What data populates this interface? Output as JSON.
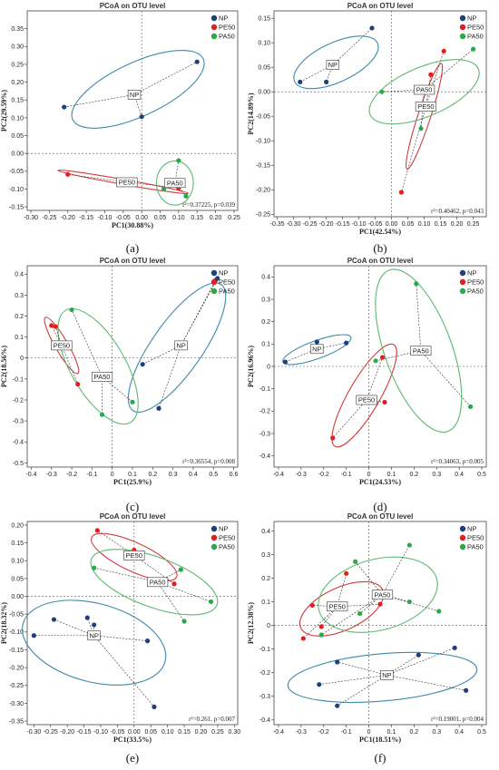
{
  "colors": {
    "NP": "#1f3f7a",
    "PE50": "#e02020",
    "PA50": "#2aa84a",
    "ellipse_NP": "#3d8aa8",
    "ellipse_PE50": "#d43a3a",
    "ellipse_PA50": "#5cb870"
  },
  "legend": [
    "NP",
    "PE50",
    "PA50"
  ],
  "chart_data": [
    {
      "type": "scatter",
      "letter": "(a)",
      "title": "PCoA on OTU level",
      "xlabel": "PC1(30.88%)",
      "ylabel": "PC2(29.59%)",
      "xlim": [
        -0.31,
        0.26
      ],
      "ylim": [
        -0.16,
        0.4
      ],
      "xticks": [
        -0.3,
        -0.25,
        -0.2,
        -0.15,
        -0.1,
        -0.05,
        0,
        0.05,
        0.1,
        0.15,
        0.2,
        0.25
      ],
      "xtick_labels": [
        "-0.30",
        "-0.25",
        "-0.20",
        "-0.15",
        "-0.10",
        "-0.05",
        "0.00",
        "0.05",
        "0.10",
        "0.15",
        "0.20",
        "0.25"
      ],
      "yticks": [
        -0.15,
        -0.1,
        -0.05,
        0,
        0.05,
        0.1,
        0.15,
        0.2,
        0.25,
        0.3,
        0.35
      ],
      "ytick_labels": [
        "-0.15",
        "-0.10",
        "-0.05",
        "0.00",
        "0.05",
        "0.10",
        "0.15",
        "0.20",
        "0.25",
        "0.30",
        "0.35"
      ],
      "stat": "r²=0.37225, p=0.039",
      "series": [
        {
          "name": "NP",
          "points": [
            [
              -0.21,
              0.13
            ],
            [
              0.0,
              0.103
            ],
            [
              0.15,
              0.257
            ]
          ],
          "centroid": [
            -0.02,
            0.165
          ],
          "ellipse": {
            "cx": -0.01,
            "cy": 0.18,
            "rx": 0.195,
            "ry": 0.075,
            "angle": 25
          }
        },
        {
          "name": "PE50",
          "points": [
            [
              -0.2,
              -0.059
            ],
            [
              -0.02,
              -0.087
            ],
            [
              0.1,
              -0.097
            ]
          ],
          "centroid": [
            -0.04,
            -0.081
          ],
          "ellipse": {
            "cx": -0.05,
            "cy": -0.08,
            "rx": 0.18,
            "ry": 0.007,
            "angle": -10
          }
        },
        {
          "name": "PA50",
          "points": [
            [
              0.1,
              -0.02
            ],
            [
              0.12,
              -0.12
            ],
            [
              0.06,
              -0.1
            ]
          ],
          "centroid": [
            0.09,
            -0.083
          ],
          "ellipse": {
            "cx": 0.09,
            "cy": -0.083,
            "rx": 0.05,
            "ry": 0.062,
            "angle": 0
          }
        }
      ]
    },
    {
      "type": "scatter",
      "letter": "(b)",
      "title": "PCoA on OTU level",
      "xlabel": "PC1(42.54%)",
      "ylabel": "PC2(14.89%)",
      "xlim": [
        -0.36,
        0.29
      ],
      "ylim": [
        -0.255,
        0.165
      ],
      "xticks": [
        -0.35,
        -0.3,
        -0.25,
        -0.2,
        -0.15,
        -0.1,
        -0.05,
        0,
        0.05,
        0.1,
        0.15,
        0.2,
        0.25
      ],
      "xtick_labels": [
        "-0.35",
        "-0.30",
        "-0.25",
        "-0.20",
        "-0.15",
        "-0.10",
        "-0.05",
        "0.00",
        "0.05",
        "0.10",
        "0.15",
        "0.20",
        "0.25"
      ],
      "yticks": [
        -0.25,
        -0.2,
        -0.15,
        -0.1,
        -0.05,
        0,
        0.05,
        0.1,
        0.15
      ],
      "ytick_labels": [
        "-0.25",
        "-0.20",
        "-0.15",
        "-0.10",
        "-0.05",
        "0.00",
        "0.05",
        "0.10",
        "0.15"
      ],
      "stat": "r²=0.40462, p=0.043",
      "series": [
        {
          "name": "NP",
          "points": [
            [
              -0.28,
              0.02
            ],
            [
              -0.2,
              0.02
            ],
            [
              -0.06,
              0.13
            ]
          ],
          "centroid": [
            -0.18,
            0.055
          ],
          "ellipse": {
            "cx": -0.17,
            "cy": 0.06,
            "rx": 0.14,
            "ry": 0.04,
            "angle": 25
          }
        },
        {
          "name": "PE50",
          "points": [
            [
              0.03,
              -0.205
            ],
            [
              0.12,
              0.035
            ],
            [
              0.16,
              0.083
            ]
          ],
          "centroid": [
            0.105,
            -0.03
          ],
          "ellipse": {
            "cx": 0.1,
            "cy": -0.05,
            "rx": 0.17,
            "ry": 0.013,
            "angle": 72
          }
        },
        {
          "name": "PA50",
          "points": [
            [
              -0.03,
              0.0
            ],
            [
              0.09,
              -0.075
            ],
            [
              0.25,
              0.087
            ]
          ],
          "centroid": [
            0.1,
            0.004
          ],
          "ellipse": {
            "cx": 0.1,
            "cy": 0.0,
            "rx": 0.18,
            "ry": 0.05,
            "angle": 23
          }
        }
      ]
    },
    {
      "type": "scatter",
      "letter": "(c)",
      "title": "PCoA on OTU level",
      "xlabel": "PC1(25.9%)",
      "ylabel": "PC2(18.56%)",
      "xlim": [
        -0.42,
        0.62
      ],
      "ylim": [
        -0.52,
        0.44
      ],
      "xticks": [
        -0.4,
        -0.3,
        -0.2,
        -0.1,
        0,
        0.1,
        0.2,
        0.3,
        0.4,
        0.5,
        0.6
      ],
      "xtick_labels": [
        "-0.4",
        "-0.3",
        "-0.2",
        "-0.1",
        "0",
        "0.1",
        "0.2",
        "0.3",
        "0.4",
        "0.5",
        "0.6"
      ],
      "yticks": [
        -0.5,
        -0.4,
        -0.3,
        -0.2,
        -0.1,
        0,
        0.1,
        0.2,
        0.3,
        0.4
      ],
      "ytick_labels": [
        "-0.5",
        "-0.4",
        "-0.3",
        "-0.2",
        "-0.1",
        "0",
        "0.1",
        "0.2",
        "0.3",
        "0.4"
      ],
      "stat": "r²=0.36554, p=0.008",
      "series": [
        {
          "name": "NP",
          "points": [
            [
              0.15,
              -0.03
            ],
            [
              0.23,
              -0.24
            ],
            [
              0.51,
              0.37
            ],
            [
              0.52,
              0.38
            ]
          ],
          "centroid": [
            0.34,
            0.06
          ],
          "ellipse": {
            "cx": 0.32,
            "cy": 0.05,
            "rx": 0.38,
            "ry": 0.12,
            "angle": 55
          }
        },
        {
          "name": "PE50",
          "points": [
            [
              -0.3,
              0.155
            ],
            [
              -0.28,
              0.15
            ],
            [
              -0.17,
              -0.125
            ]
          ],
          "centroid": [
            -0.25,
            0.06
          ],
          "ellipse": {
            "cx": -0.25,
            "cy": 0.06,
            "rx": 0.16,
            "ry": 0.03,
            "angle": -60
          }
        },
        {
          "name": "PA50",
          "points": [
            [
              -0.2,
              0.23
            ],
            [
              -0.05,
              -0.27
            ],
            [
              0.1,
              -0.21
            ]
          ],
          "centroid": [
            -0.05,
            -0.09
          ],
          "ellipse": {
            "cx": -0.07,
            "cy": -0.04,
            "rx": 0.32,
            "ry": 0.13,
            "angle": -60
          }
        }
      ]
    },
    {
      "type": "scatter",
      "letter": "(d)",
      "title": "PCoA on OTU level",
      "xlabel": "PC1(24.53%)",
      "ylabel": "PC2(16.96%)",
      "xlim": [
        -0.42,
        0.52
      ],
      "ylim": [
        -0.45,
        0.45
      ],
      "xticks": [
        -0.4,
        -0.3,
        -0.2,
        -0.1,
        0,
        0.1,
        0.2,
        0.3,
        0.4,
        0.5
      ],
      "xtick_labels": [
        "-0.4",
        "-0.3",
        "-0.2",
        "-0.1",
        "0",
        "0.1",
        "0.2",
        "0.3",
        "0.4",
        "0.5"
      ],
      "yticks": [
        -0.4,
        -0.3,
        -0.2,
        -0.1,
        0,
        0.1,
        0.2,
        0.3,
        0.4
      ],
      "ytick_labels": [
        "-0.4",
        "-0.3",
        "-0.2",
        "-0.1",
        "0",
        "0.1",
        "0.2",
        "0.3",
        "0.4"
      ],
      "stat": "r²=0.34063, p=0.005",
      "series": [
        {
          "name": "NP",
          "points": [
            [
              -0.37,
              0.02
            ],
            [
              -0.23,
              0.11
            ],
            [
              -0.1,
              0.105
            ]
          ],
          "centroid": [
            -0.23,
            0.078
          ],
          "ellipse": {
            "cx": -0.23,
            "cy": 0.075,
            "rx": 0.16,
            "ry": 0.04,
            "angle": 20
          }
        },
        {
          "name": "PE50",
          "points": [
            [
              -0.16,
              -0.32
            ],
            [
              0.06,
              0.04
            ],
            [
              0.07,
              -0.16
            ]
          ],
          "centroid": [
            -0.01,
            -0.15
          ],
          "ellipse": {
            "cx": -0.02,
            "cy": -0.13,
            "rx": 0.26,
            "ry": 0.07,
            "angle": 60
          }
        },
        {
          "name": "PA50",
          "points": [
            [
              0.03,
              0.025
            ],
            [
              0.21,
              0.37
            ],
            [
              0.45,
              -0.18
            ]
          ],
          "centroid": [
            0.23,
            0.07
          ],
          "ellipse": {
            "cx": 0.22,
            "cy": 0.07,
            "rx": 0.38,
            "ry": 0.15,
            "angle": -70
          }
        }
      ]
    },
    {
      "type": "scatter",
      "letter": "(e)",
      "title": "PCoA on OTU level",
      "xlabel": "PC1(33.5%)",
      "ylabel": "PC2(18.32%)",
      "xlim": [
        -0.32,
        0.31
      ],
      "ylim": [
        -0.36,
        0.21
      ],
      "xticks": [
        -0.3,
        -0.25,
        -0.2,
        -0.15,
        -0.1,
        -0.05,
        0,
        0.05,
        0.1,
        0.15,
        0.2,
        0.25,
        0.3
      ],
      "xtick_labels": [
        "-0.30",
        "-0.25",
        "-0.20",
        "-0.15",
        "-0.10",
        "-0.05",
        "0.00",
        "0.05",
        "0.10",
        "0.15",
        "0.20",
        "0.25",
        "0.30"
      ],
      "yticks": [
        -0.35,
        -0.3,
        -0.25,
        -0.2,
        -0.15,
        -0.1,
        -0.05,
        0,
        0.05,
        0.1,
        0.15,
        0.2
      ],
      "ytick_labels": [
        "-0.35",
        "-0.30",
        "-0.25",
        "-0.20",
        "-0.15",
        "-0.10",
        "-0.05",
        "0.00",
        "0.05",
        "0.10",
        "0.15",
        "0.20"
      ],
      "stat": "r²=0.261, p=0.007",
      "series": [
        {
          "name": "NP",
          "points": [
            [
              -0.3,
              -0.11
            ],
            [
              -0.24,
              -0.065
            ],
            [
              -0.14,
              -0.06
            ],
            [
              -0.12,
              -0.08
            ],
            [
              0.04,
              -0.125
            ],
            [
              0.06,
              -0.31
            ]
          ],
          "centroid": [
            -0.12,
            -0.11
          ],
          "ellipse": {
            "cx": -0.12,
            "cy": -0.13,
            "rx": 0.22,
            "ry": 0.11,
            "angle": -15
          }
        },
        {
          "name": "PE50",
          "points": [
            [
              -0.11,
              0.185
            ],
            [
              0.0,
              0.13
            ],
            [
              0.02,
              0.11
            ],
            [
              0.12,
              0.035
            ]
          ],
          "centroid": [
            0.0,
            0.115
          ],
          "ellipse": {
            "cx": 0.0,
            "cy": 0.11,
            "rx": 0.14,
            "ry": 0.04,
            "angle": -25
          }
        },
        {
          "name": "PA50",
          "points": [
            [
              -0.12,
              0.08
            ],
            [
              0.14,
              0.075
            ],
            [
              0.23,
              -0.015
            ],
            [
              0.15,
              -0.07
            ]
          ],
          "centroid": [
            0.07,
            0.04
          ],
          "ellipse": {
            "cx": 0.06,
            "cy": 0.04,
            "rx": 0.2,
            "ry": 0.07,
            "angle": -20
          }
        }
      ]
    },
    {
      "type": "scatter",
      "letter": "(f)",
      "title": "PCoA on OTU level",
      "xlabel": "PC1(18.51%)",
      "ylabel": "PC2(12.38%)",
      "xlim": [
        -0.42,
        0.52
      ],
      "ylim": [
        -0.42,
        0.44
      ],
      "xticks": [
        -0.4,
        -0.3,
        -0.2,
        -0.1,
        0,
        0.1,
        0.2,
        0.3,
        0.4,
        0.5
      ],
      "xtick_labels": [
        "-0.4",
        "-0.3",
        "-0.2",
        "-0.1",
        "0",
        "0.1",
        "0.2",
        "0.3",
        "0.4",
        "0.5"
      ],
      "yticks": [
        -0.4,
        -0.3,
        -0.2,
        -0.1,
        0,
        0.1,
        0.2,
        0.3,
        0.4
      ],
      "ytick_labels": [
        "-0.4",
        "-0.3",
        "-0.2",
        "-0.1",
        "0",
        "0.1",
        "0.2",
        "0.3",
        "0.4"
      ],
      "stat": "r²=0.19001, p=0.004",
      "series": [
        {
          "name": "NP",
          "points": [
            [
              -0.22,
              -0.25
            ],
            [
              -0.14,
              -0.155
            ],
            [
              -0.14,
              -0.34
            ],
            [
              0.22,
              -0.125
            ],
            [
              0.38,
              -0.095
            ],
            [
              0.43,
              -0.275
            ]
          ],
          "centroid": [
            0.08,
            -0.21
          ],
          "ellipse": {
            "cx": 0.06,
            "cy": -0.22,
            "rx": 0.42,
            "ry": 0.1,
            "angle": 5
          }
        },
        {
          "name": "PE50",
          "points": [
            [
              -0.29,
              -0.055
            ],
            [
              -0.25,
              0.085
            ],
            [
              -0.21,
              -0.005
            ],
            [
              -0.1,
              0.22
            ],
            [
              0.05,
              0.09
            ]
          ],
          "centroid": [
            -0.14,
            0.08
          ],
          "ellipse": {
            "cx": -0.12,
            "cy": 0.07,
            "rx": 0.2,
            "ry": 0.09,
            "angle": 25
          }
        },
        {
          "name": "PA50",
          "points": [
            [
              -0.21,
              -0.04
            ],
            [
              -0.04,
              0.05
            ],
            [
              -0.06,
              0.27
            ],
            [
              0.18,
              0.34
            ],
            [
              0.18,
              0.1
            ],
            [
              0.31,
              0.06
            ]
          ],
          "centroid": [
            0.06,
            0.13
          ],
          "ellipse": {
            "cx": 0.04,
            "cy": 0.13,
            "rx": 0.27,
            "ry": 0.15,
            "angle": 15
          }
        }
      ]
    }
  ]
}
